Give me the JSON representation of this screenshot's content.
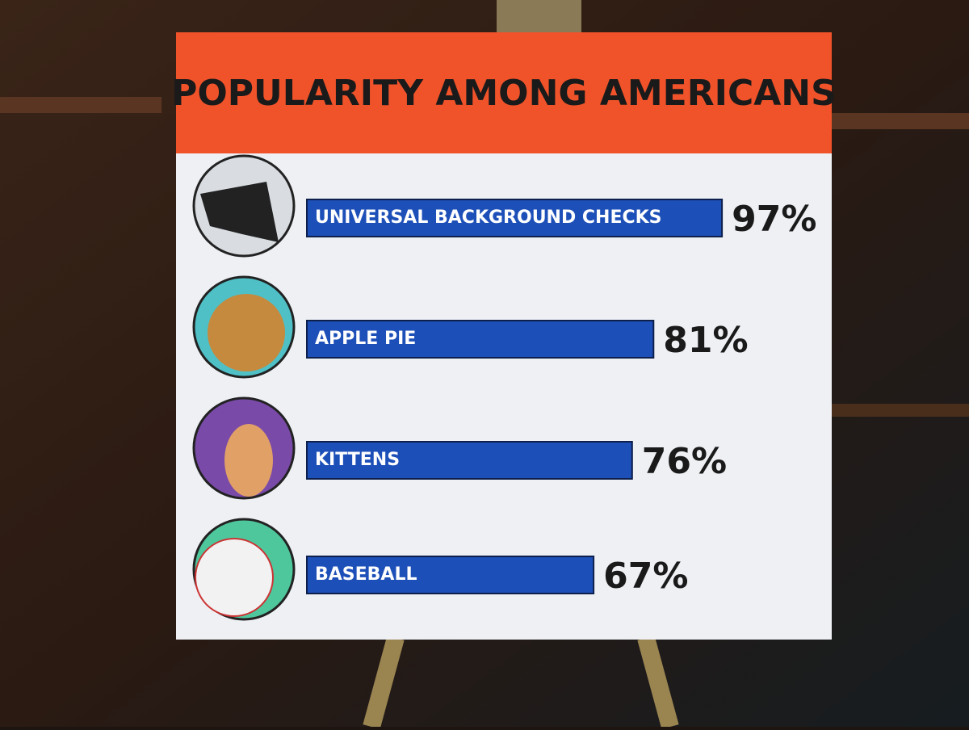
{
  "chart_data": {
    "type": "bar",
    "orientation": "horizontal",
    "title": "POPULARITY AMONG AMERICANS",
    "categories": [
      "UNIVERSAL BACKGROUND CHECKS",
      "APPLE PIE",
      "KITTENS",
      "BASEBALL"
    ],
    "values": [
      97,
      81,
      76,
      67
    ],
    "value_labels": [
      "97%",
      "81%",
      "76%",
      "67%"
    ],
    "color": "#1d4fb8"
  }
}
